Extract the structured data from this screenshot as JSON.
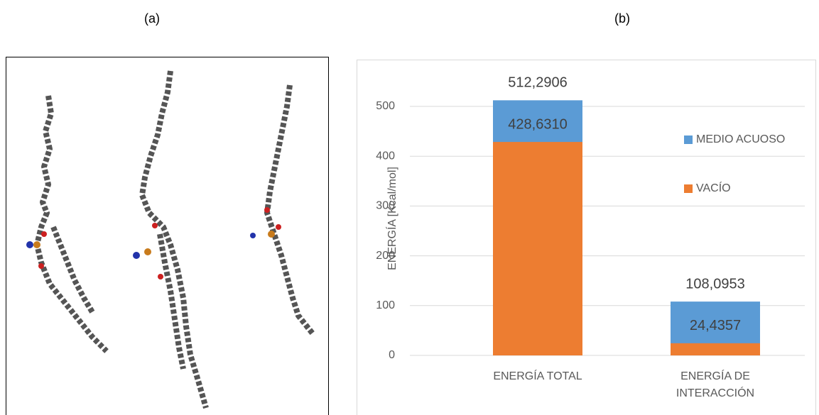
{
  "panel_labels": [
    "(a)",
    "(b)"
  ],
  "chart_data": {
    "type": "bar",
    "overlap": true,
    "y_label": "ENERGÍA [Kcal/mol]",
    "categories": [
      "ENERGÍA TOTAL",
      "ENERGÍA DE INTERACCIÓN"
    ],
    "series": [
      {
        "name": "MEDIO ACUOSO",
        "color": "#5b9bd5",
        "values": [
          512.2906,
          108.0953
        ],
        "value_labels": [
          "512,2906",
          "108,0953"
        ]
      },
      {
        "name": "VACÍO",
        "color": "#ed7d31",
        "values": [
          428.631,
          24.4357
        ],
        "value_labels": [
          "428,6310",
          "24,4357"
        ]
      }
    ],
    "ylim": [
      0,
      500
    ],
    "yticks": [
      0,
      100,
      200,
      300,
      400,
      500
    ],
    "grid": true,
    "legend": "right"
  }
}
